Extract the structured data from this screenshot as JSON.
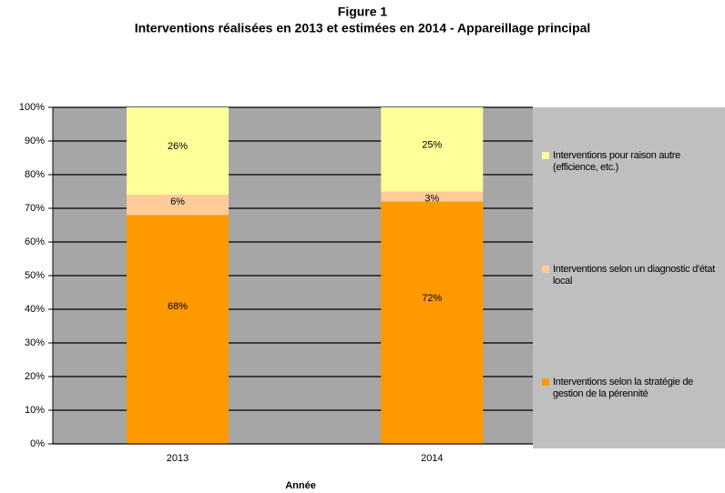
{
  "chart_data": {
    "type": "stacked_bar",
    "title": "Figure 1",
    "subtitle": "Interventions réalisées en 2013 et estimées en 2014 - Appareillage principal",
    "x_label": "Année",
    "categories": [
      "2013",
      "2014"
    ],
    "series": [
      {
        "name": "Interventions selon la stratégie de gestion de la pérennité",
        "color": "#ff9900",
        "values": [
          68,
          72
        ],
        "value_labels": [
          "68%",
          "72%"
        ]
      },
      {
        "name": "Interventions selon un diagnostic d'état local",
        "color": "#ffcc99",
        "values": [
          6,
          3
        ],
        "value_labels": [
          "6%",
          "3%"
        ]
      },
      {
        "name": "Interventions pour raison autre (efficience, etc.)",
        "color": "#ffff99",
        "values": [
          26,
          25
        ],
        "value_labels": [
          "26%",
          "25%"
        ]
      }
    ],
    "ylim": [
      0,
      100
    ],
    "yticks": [
      {
        "value": 0,
        "label": "0%"
      },
      {
        "value": 10,
        "label": "10%"
      },
      {
        "value": 20,
        "label": "20%"
      },
      {
        "value": 30,
        "label": "30%"
      },
      {
        "value": 40,
        "label": "40%"
      },
      {
        "value": 50,
        "label": "50%"
      },
      {
        "value": 60,
        "label": "60%"
      },
      {
        "value": 70,
        "label": "70%"
      },
      {
        "value": 80,
        "label": "80%"
      },
      {
        "value": 90,
        "label": "90%"
      },
      {
        "value": 100,
        "label": "100%"
      }
    ],
    "grid": true,
    "legend": "right"
  }
}
